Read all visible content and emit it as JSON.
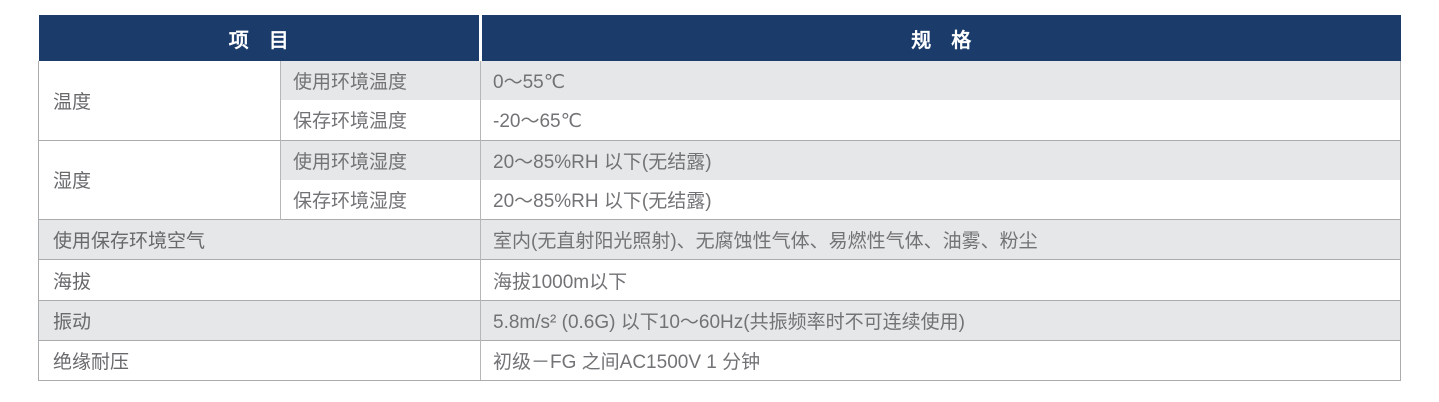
{
  "colors": {
    "header_bg": "#1b3c6b",
    "header_text": "#ffffff",
    "stripe_gray": "#e6e7e8",
    "border_gray": "#aaacae",
    "body_text": "#727375"
  },
  "table": {
    "header": {
      "item": "项　目",
      "spec": "规　格"
    },
    "groups": [
      {
        "label": "温度",
        "rows": [
          {
            "sub": "使用环境温度",
            "spec": "0～55℃"
          },
          {
            "sub": "保存环境温度",
            "spec": "-20～65℃"
          }
        ]
      },
      {
        "label": "湿度",
        "rows": [
          {
            "sub": "使用环境湿度",
            "spec": "20～85%RH 以下(无结露)"
          },
          {
            "sub": "保存环境湿度",
            "spec": "20～85%RH 以下(无结露)"
          }
        ]
      }
    ],
    "simple_rows": [
      {
        "item": "使用保存环境空气",
        "spec": "室内(无直射阳光照射)、无腐蚀性气体、易燃性气体、油雾、粉尘"
      },
      {
        "item": "海拔",
        "spec": "海拔1000m以下"
      },
      {
        "item": "振动",
        "spec": "5.8m/s² (0.6G) 以下10～60Hz(共振频率时不可连续使用)"
      },
      {
        "item": "绝缘耐压",
        "spec": "初级－FG 之间AC1500V 1 分钟"
      }
    ]
  }
}
